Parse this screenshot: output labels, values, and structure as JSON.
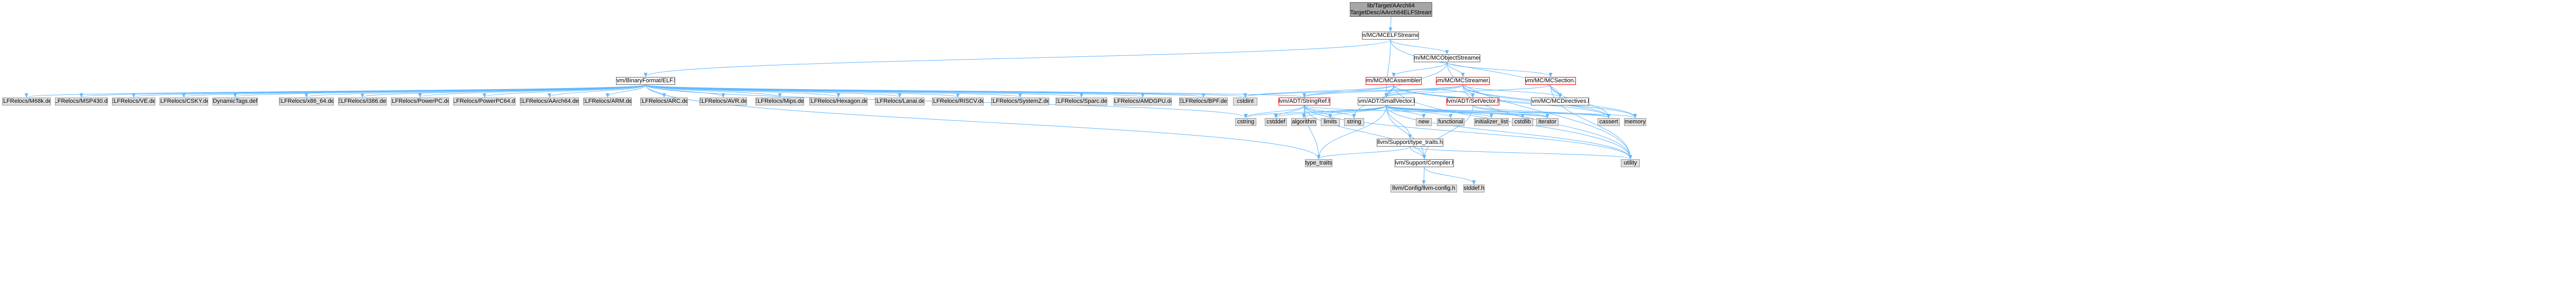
{
  "diagram": {
    "type": "include-dependency-graph",
    "colors": {
      "edge": "#63b8ff",
      "edge_dark": "#8b1a1a",
      "root_fill": "#a6a6a6",
      "external_fill": "#e0e0e0",
      "node_border": "#666666",
      "highlight_border": "#ff0000"
    },
    "nodes": {
      "root": {
        "line1": "lib/Target/AArch64",
        "line2": "/MCTargetDesc/AArch64ELFStreamer.h"
      },
      "mcelfstreamer": {
        "label": "llvm/MC/MCELFStreamer.h"
      },
      "mcobjectstreamer": {
        "label": "llvm/MC/MCObjectStreamer.h"
      },
      "binaryformat_elf": {
        "label": "llvm/BinaryFormat/ELF.h"
      },
      "mcassembler": {
        "label": "llvm/MC/MCAssembler.h"
      },
      "mcstreamer": {
        "label": "llvm/MC/MCStreamer.h"
      },
      "mcsection": {
        "label": "llvm/MC/MCSection.h"
      },
      "m68k": {
        "label": "ELFRelocs/M68k.def"
      },
      "msp430": {
        "label": "ELFRelocs/MSP430.def"
      },
      "ve": {
        "label": "ELFRelocs/VE.def"
      },
      "csky": {
        "label": "ELFRelocs/CSKY.def"
      },
      "dynamictags": {
        "label": "DynamicTags.def"
      },
      "x86_64": {
        "label": "ELFRelocs/x86_64.def"
      },
      "i386": {
        "label": "ELFRelocs/i386.def"
      },
      "powerpc": {
        "label": "ELFRelocs/PowerPC.def"
      },
      "powerpc64": {
        "label": "ELFRelocs/PowerPC64.def"
      },
      "aarch64def": {
        "label": "ELFRelocs/AArch64.def"
      },
      "arm": {
        "label": "ELFRelocs/ARM.def"
      },
      "arc": {
        "label": "ELFRelocs/ARC.def"
      },
      "avr": {
        "label": "ELFRelocs/AVR.def"
      },
      "mips": {
        "label": "ELFRelocs/Mips.def"
      },
      "hexagon": {
        "label": "ELFRelocs/Hexagon.def"
      },
      "lanai": {
        "label": "ELFRelocs/Lanai.def"
      },
      "riscv": {
        "label": "ELFRelocs/RISCV.def"
      },
      "systemz": {
        "label": "ELFRelocs/SystemZ.def"
      },
      "sparc": {
        "label": "ELFRelocs/Sparc.def"
      },
      "amdgpu": {
        "label": "ELFRelocs/AMDGPU.def"
      },
      "bpf": {
        "label": "ELFRelocs/BPF.def"
      },
      "cstdint": {
        "label": "cstdint"
      },
      "stringref": {
        "label": "llvm/ADT/StringRef.h"
      },
      "smallvector": {
        "label": "llvm/ADT/SmallVector.h"
      },
      "setvector": {
        "label": "llvm/ADT/SetVector.h"
      },
      "mcdirectives": {
        "label": "llvm/MC/MCDirectives.h"
      },
      "cstring": {
        "label": "cstring"
      },
      "cstddef": {
        "label": "cstddef"
      },
      "algorithm": {
        "label": "algorithm"
      },
      "limits": {
        "label": "limits"
      },
      "string": {
        "label": "string"
      },
      "new": {
        "label": "new"
      },
      "functional": {
        "label": "functional"
      },
      "initializer_list": {
        "label": "initializer_list"
      },
      "cstdlib": {
        "label": "cstdlib"
      },
      "iterator": {
        "label": "iterator"
      },
      "cassert": {
        "label": "cassert"
      },
      "memory": {
        "label": "memory"
      },
      "type_traits_h": {
        "label": "llvm/Support/type_traits.h"
      },
      "compiler": {
        "label": "llvm/Support/Compiler.h"
      },
      "type_traits": {
        "label": "type_traits"
      },
      "utility": {
        "label": "utility"
      },
      "llvm_config": {
        "label": "llvm/Config/llvm-config.h"
      },
      "stddef": {
        "label": "stddef.h"
      }
    }
  }
}
